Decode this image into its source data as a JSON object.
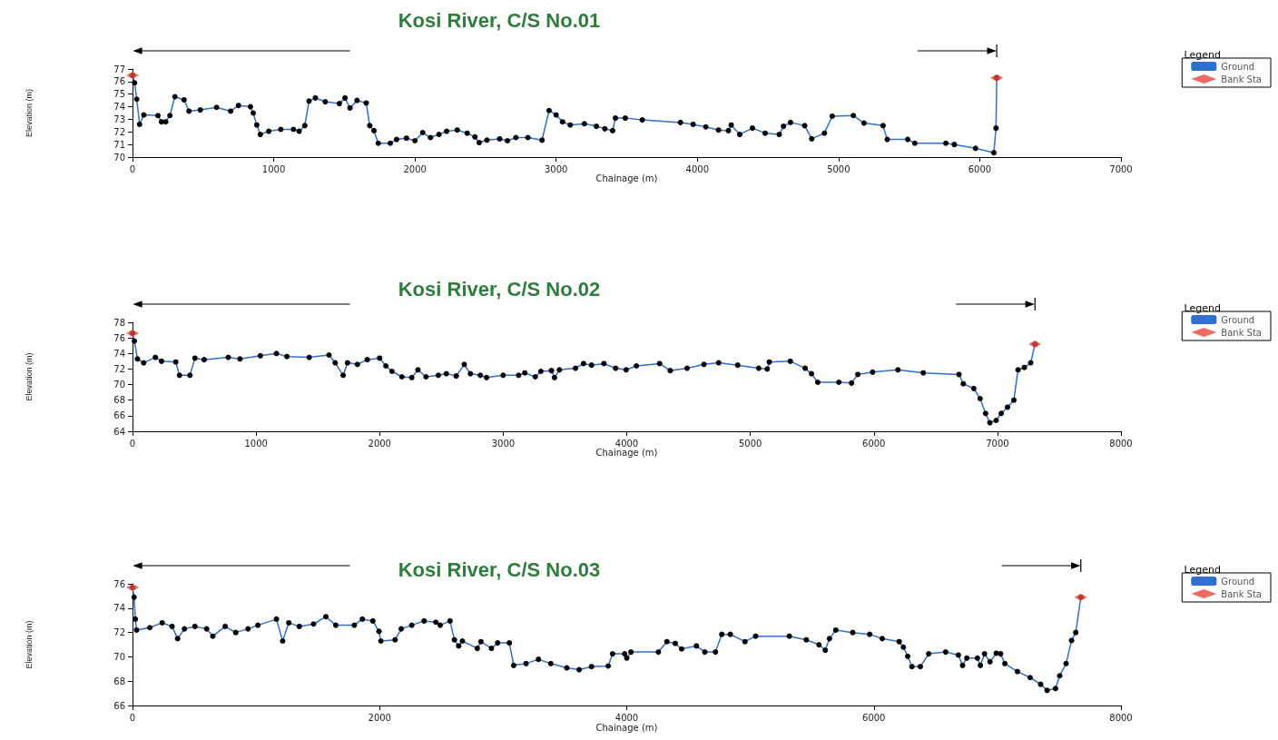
{
  "chart_data": [
    {
      "type": "line",
      "marker": "circle",
      "title": "Kosi River, C/S No.01",
      "xlabel": "Chainage (m)",
      "ylabel": "Elevation (m)",
      "legend_title": "Legend",
      "legend": "right",
      "grid": false,
      "xlim": [
        0,
        7000
      ],
      "xticks": [
        0,
        1000,
        2000,
        3000,
        4000,
        5000,
        6000,
        7000
      ],
      "ylim": [
        70,
        77
      ],
      "yticks": [
        70,
        71,
        72,
        73,
        74,
        75,
        76,
        77
      ],
      "series": [
        {
          "name": "Ground",
          "color": "#2f6fd0",
          "x": [
            0,
            15,
            30,
            50,
            80,
            180,
            205,
            235,
            265,
            300,
            365,
            400,
            480,
            595,
            695,
            750,
            835,
            855,
            880,
            905,
            965,
            1050,
            1140,
            1180,
            1220,
            1250,
            1295,
            1365,
            1465,
            1505,
            1540,
            1590,
            1655,
            1680,
            1710,
            1740,
            1825,
            1870,
            1940,
            2000,
            2055,
            2110,
            2170,
            2225,
            2300,
            2370,
            2425,
            2455,
            2510,
            2600,
            2655,
            2715,
            2800,
            2900,
            2950,
            3000,
            3045,
            3100,
            3200,
            3285,
            3345,
            3400,
            3420,
            3490,
            3610,
            3880,
            3970,
            4060,
            4150,
            4220,
            4240,
            4300,
            4390,
            4480,
            4580,
            4610,
            4660,
            4760,
            4810,
            4900,
            4955,
            5105,
            5180,
            5315,
            5345,
            5490,
            5540,
            5760,
            5820,
            5970,
            6100,
            6115,
            6120
          ],
          "values": [
            76.5,
            75.9,
            74.6,
            72.6,
            73.35,
            73.3,
            72.8,
            72.8,
            73.3,
            74.8,
            74.55,
            73.65,
            73.75,
            73.95,
            73.65,
            74.1,
            74.0,
            73.5,
            72.55,
            71.8,
            72.05,
            72.2,
            72.2,
            72.05,
            72.5,
            74.45,
            74.7,
            74.4,
            74.25,
            74.7,
            73.9,
            74.5,
            74.3,
            72.5,
            72.1,
            71.1,
            71.1,
            71.4,
            71.5,
            71.3,
            71.95,
            71.55,
            71.8,
            72.05,
            72.15,
            71.9,
            71.6,
            71.15,
            71.35,
            71.45,
            71.3,
            71.55,
            71.55,
            71.35,
            73.7,
            73.35,
            72.8,
            72.55,
            72.65,
            72.45,
            72.25,
            72.1,
            73.1,
            73.1,
            72.95,
            72.75,
            72.6,
            72.4,
            72.15,
            72.1,
            72.55,
            71.8,
            72.3,
            71.9,
            71.8,
            72.45,
            72.75,
            72.5,
            71.45,
            71.9,
            73.25,
            73.3,
            72.7,
            72.5,
            71.4,
            71.4,
            71.1,
            71.1,
            71.0,
            70.7,
            70.35,
            72.3,
            76.3
          ]
        },
        {
          "name": "Bank Sta",
          "type": "scatter",
          "color": "#e8463c",
          "marker": "diamond",
          "x": [
            0,
            6120
          ],
          "values": [
            76.5,
            76.3
          ]
        }
      ]
    },
    {
      "type": "line",
      "marker": "circle",
      "title": "Kosi River, C/S No.02",
      "xlabel": "Chainage (m)",
      "ylabel": "Elevation (m)",
      "legend_title": "Legend",
      "legend": "right",
      "grid": false,
      "xlim": [
        0,
        8000
      ],
      "xticks": [
        0,
        1000,
        2000,
        3000,
        4000,
        5000,
        6000,
        7000,
        8000
      ],
      "ylim": [
        64,
        78
      ],
      "yticks": [
        64,
        66,
        68,
        70,
        72,
        74,
        76,
        78
      ],
      "series": [
        {
          "name": "Ground",
          "color": "#2f6fd0",
          "x": [
            0,
            15,
            40,
            90,
            185,
            235,
            350,
            380,
            465,
            505,
            580,
            775,
            870,
            1035,
            1165,
            1250,
            1430,
            1590,
            1640,
            1705,
            1740,
            1820,
            1900,
            2000,
            2050,
            2100,
            2180,
            2260,
            2310,
            2375,
            2475,
            2540,
            2620,
            2685,
            2735,
            2815,
            2865,
            3000,
            3125,
            3175,
            3260,
            3305,
            3390,
            3415,
            3455,
            3585,
            3650,
            3715,
            3815,
            3910,
            3995,
            4078,
            4266,
            4352,
            4488,
            4625,
            4744,
            4898,
            5068,
            5137,
            5154,
            5324,
            5444,
            5495,
            5546,
            5717,
            5819,
            5870,
            5990,
            6195,
            6400,
            6689,
            6724,
            6809,
            6860,
            6904,
            6939,
            6990,
            7031,
            7082,
            7133,
            7167,
            7218,
            7270,
            7304
          ],
          "values": [
            76.6,
            75.6,
            73.3,
            72.8,
            73.5,
            73.0,
            72.9,
            71.2,
            71.2,
            73.4,
            73.2,
            73.5,
            73.3,
            73.7,
            74.0,
            73.6,
            73.5,
            73.8,
            72.8,
            71.2,
            72.8,
            72.6,
            73.2,
            73.4,
            72.4,
            71.7,
            71.0,
            70.9,
            71.9,
            71.0,
            71.2,
            71.4,
            71.1,
            72.6,
            71.4,
            71.2,
            70.9,
            71.2,
            71.2,
            71.5,
            71.0,
            71.7,
            71.8,
            70.9,
            71.9,
            72.1,
            72.7,
            72.5,
            72.7,
            72.1,
            71.9,
            72.4,
            72.7,
            71.8,
            72.1,
            72.6,
            72.8,
            72.5,
            72.1,
            72.0,
            72.9,
            73.0,
            72.1,
            71.4,
            70.3,
            70.3,
            70.2,
            71.3,
            71.6,
            71.9,
            71.5,
            71.3,
            70.1,
            69.5,
            68.2,
            66.3,
            65.1,
            65.4,
            66.3,
            67.1,
            68.0,
            71.9,
            72.2,
            72.8,
            75.2
          ]
        },
        {
          "name": "Bank Sta",
          "type": "scatter",
          "color": "#e8463c",
          "marker": "diamond",
          "x": [
            0,
            7304
          ],
          "values": [
            76.6,
            75.2
          ]
        }
      ]
    },
    {
      "type": "line",
      "marker": "circle",
      "title": "Kosi River, C/S No.03",
      "xlabel": "Chainage (m)",
      "ylabel": "Elevation (m)",
      "legend_title": "Legend",
      "legend": "right",
      "grid": false,
      "xlim": [
        0,
        8000
      ],
      "xticks": [
        0,
        2000,
        4000,
        6000,
        8000
      ],
      "ylim": [
        66,
        76
      ],
      "yticks": [
        66,
        68,
        70,
        72,
        74,
        76
      ],
      "series": [
        {
          "name": "Ground",
          "color": "#2f6fd0",
          "x": [
            0,
            13,
            23,
            33,
            140,
            240,
            320,
            365,
            420,
            505,
            600,
            650,
            750,
            835,
            935,
            1015,
            1165,
            1215,
            1265,
            1350,
            1465,
            1565,
            1645,
            1795,
            1860,
            1945,
            1995,
            2010,
            2125,
            2175,
            2260,
            2360,
            2455,
            2490,
            2570,
            2605,
            2640,
            2670,
            2790,
            2820,
            2905,
            2955,
            3050,
            3085,
            3185,
            3285,
            3385,
            3515,
            3615,
            3715,
            3850,
            3885,
            3983,
            4000,
            4034,
            4256,
            4325,
            4393,
            4444,
            4564,
            4632,
            4718,
            4769,
            4838,
            4957,
            5043,
            5316,
            5453,
            5556,
            5607,
            5641,
            5692,
            5829,
            5966,
            6068,
            6205,
            6239,
            6274,
            6308,
            6376,
            6444,
            6581,
            6684,
            6718,
            6752,
            6838,
            6862,
            6896,
            6940,
            6991,
            7026,
            7060,
            7162,
            7265,
            7350,
            7402,
            7470,
            7504,
            7556,
            7600,
            7634,
            7675
          ],
          "values": [
            75.7,
            74.9,
            73.1,
            72.2,
            72.4,
            72.8,
            72.5,
            71.5,
            72.3,
            72.5,
            72.3,
            71.7,
            72.5,
            72.0,
            72.3,
            72.6,
            73.1,
            71.3,
            72.8,
            72.5,
            72.7,
            73.3,
            72.6,
            72.6,
            73.1,
            72.95,
            72.1,
            71.3,
            71.4,
            72.3,
            72.6,
            72.95,
            72.85,
            72.6,
            72.95,
            71.4,
            70.9,
            71.3,
            70.7,
            71.25,
            70.7,
            71.15,
            71.15,
            69.3,
            69.45,
            69.8,
            69.45,
            69.1,
            68.95,
            69.2,
            69.25,
            70.25,
            70.25,
            69.9,
            70.4,
            70.4,
            71.25,
            71.1,
            70.65,
            70.9,
            70.4,
            70.4,
            71.85,
            71.85,
            71.25,
            71.7,
            71.7,
            71.4,
            71.0,
            70.55,
            71.5,
            72.2,
            72.0,
            71.85,
            71.5,
            71.25,
            70.8,
            70.05,
            69.2,
            69.2,
            70.25,
            70.4,
            70.15,
            69.3,
            69.9,
            69.9,
            69.3,
            70.25,
            69.6,
            70.3,
            70.25,
            69.45,
            68.8,
            68.3,
            67.75,
            67.25,
            67.4,
            68.45,
            69.45,
            71.35,
            72.0,
            74.9
          ]
        },
        {
          "name": "Bank Sta",
          "type": "scatter",
          "color": "#e8463c",
          "marker": "diamond",
          "x": [
            0,
            7675
          ],
          "values": [
            75.7,
            74.9
          ]
        }
      ]
    }
  ]
}
